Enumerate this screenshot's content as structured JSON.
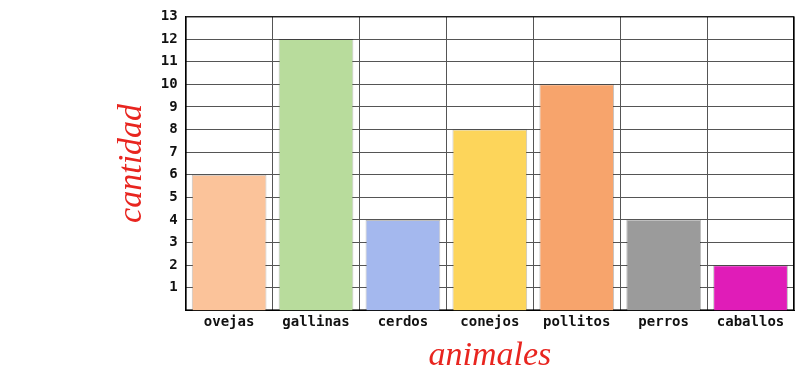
{
  "chart_data": {
    "type": "bar",
    "x_label": "animales",
    "y_label": "cantidad",
    "categories": [
      "ovejas",
      "gallinas",
      "cerdos",
      "conejos",
      "pollitos",
      "perros",
      "caballos"
    ],
    "values": [
      6,
      12,
      4,
      8,
      10,
      4,
      2
    ],
    "colors": [
      "#fbc39a",
      "#b8dc9c",
      "#a4b8ee",
      "#fdd55a",
      "#f7a46c",
      "#9b9b9b",
      "#e01cb8"
    ],
    "ylim": [
      0,
      13
    ],
    "yticks": [
      1,
      2,
      3,
      4,
      5,
      6,
      7,
      8,
      9,
      10,
      11,
      12,
      13
    ],
    "grid": true
  }
}
